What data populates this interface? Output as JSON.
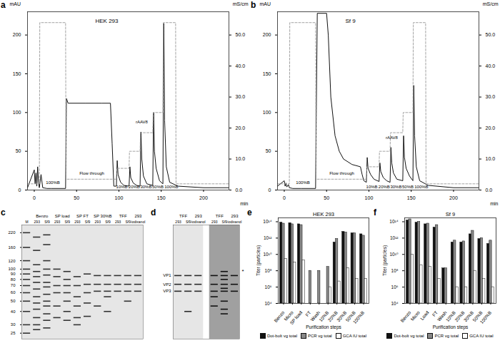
{
  "chart_data": [
    {
      "panel": "a",
      "type": "line",
      "title": "HEK 293",
      "xlabel": "min",
      "ylabel": "mAU",
      "y2label": "mS/cm",
      "xlim": [
        -8,
        230
      ],
      "xticks": [
        0,
        50,
        100,
        150,
        200
      ],
      "ylim": [
        0,
        230
      ],
      "yticks": [
        0,
        50,
        100,
        150,
        200
      ],
      "y2lim": [
        0,
        57.5
      ],
      "y2ticks": [
        {
          "value": 0,
          "label": "0.0"
        },
        {
          "value": 10,
          "label": "10.0"
        },
        {
          "value": 20,
          "label": "20.0"
        },
        {
          "value": 30,
          "label": "30.0"
        },
        {
          "value": 40,
          "label": "40.0"
        },
        {
          "value": 50,
          "label": "50.0"
        }
      ],
      "series": [
        {
          "color": "#111111",
          "line_style": "solid",
          "x": [
            -8,
            0,
            1,
            2,
            3,
            4,
            5,
            6,
            8,
            10,
            15,
            20,
            37,
            38,
            40,
            60,
            80,
            90,
            92,
            94,
            97,
            98,
            99,
            102,
            106,
            112,
            113,
            114,
            117,
            121,
            125,
            126,
            127,
            129,
            133,
            140,
            141,
            142,
            144,
            148,
            152,
            153,
            154,
            156,
            160,
            170,
            200,
            230
          ],
          "values": [
            3,
            26,
            8,
            22,
            5,
            30,
            10,
            3,
            20,
            3,
            2,
            2,
            2,
            118,
            112,
            112,
            112,
            112,
            60,
            5,
            5,
            38,
            20,
            10,
            6,
            5,
            30,
            16,
            9,
            6,
            5,
            75,
            40,
            18,
            8,
            6,
            100,
            50,
            28,
            12,
            8,
            215,
            90,
            30,
            10,
            5,
            3,
            3
          ]
        },
        {
          "color": "#999999",
          "line_style": "dashed",
          "axis": "y2",
          "x": [
            -8,
            6,
            6.5,
            37,
            37.5,
            97,
            97.5,
            112,
            112.5,
            125,
            125.5,
            140,
            140.5,
            152,
            152.5,
            167,
            167.5,
            230
          ],
          "values": [
            2,
            2,
            54,
            54,
            3.5,
            3.5,
            7,
            7,
            12.5,
            12.5,
            18.5,
            18.5,
            25,
            25,
            54,
            54,
            2,
            2
          ]
        }
      ],
      "annotations": [
        {
          "text": "100%B",
          "x": 22,
          "y": 10
        },
        {
          "text": "Flow through",
          "x": 68,
          "y": 22
        },
        {
          "text": "10%B",
          "x": 103.5,
          "y": 4
        },
        {
          "text": "20%B",
          "x": 118,
          "y": 4
        },
        {
          "text": "30%B",
          "x": 132,
          "y": 4
        },
        {
          "text": "50%B",
          "x": 146,
          "y": 4
        },
        {
          "text": "100%B",
          "x": 162,
          "y": 4
        },
        {
          "text": "rAAV8",
          "x": 127,
          "y": 88
        }
      ]
    },
    {
      "panel": "b",
      "type": "line",
      "title": "Sf 9",
      "xlabel": "min",
      "ylabel": "mAU",
      "y2label": "mS/cm",
      "xlim": [
        -8,
        230
      ],
      "xticks": [
        0,
        50,
        100,
        150,
        200
      ],
      "ylim": [
        0,
        230
      ],
      "yticks": [
        0,
        50,
        100,
        150,
        200
      ],
      "y2lim": [
        0,
        57.5
      ],
      "y2ticks": [
        {
          "value": 0,
          "label": "0.0"
        },
        {
          "value": 10,
          "label": "10.0"
        },
        {
          "value": 20,
          "label": "20.0"
        },
        {
          "value": 30,
          "label": "30.0"
        },
        {
          "value": 40,
          "label": "40.0"
        },
        {
          "value": 50,
          "label": "50.0"
        }
      ],
      "series": [
        {
          "color": "#111111",
          "line_style": "solid",
          "x": [
            -8,
            0,
            1,
            2,
            3,
            5,
            6,
            10,
            20,
            37,
            38,
            39,
            50,
            52,
            55,
            60,
            65,
            70,
            80,
            90,
            92,
            94,
            97,
            98,
            99,
            102,
            106,
            112,
            113,
            114,
            117,
            121,
            125,
            126,
            127,
            129,
            133,
            140,
            141,
            142,
            144,
            148,
            152,
            153,
            154,
            156,
            160,
            170,
            200,
            230
          ],
          "values": [
            5,
            12,
            5,
            9,
            4,
            7,
            3,
            2,
            2,
            2,
            120,
            228,
            228,
            200,
            120,
            70,
            50,
            40,
            33,
            30,
            20,
            12,
            10,
            42,
            28,
            20,
            14,
            11,
            35,
            24,
            16,
            12,
            10,
            55,
            35,
            22,
            14,
            12,
            70,
            42,
            28,
            18,
            12,
            135,
            70,
            30,
            12,
            6,
            3,
            3
          ]
        },
        {
          "color": "#999999",
          "line_style": "dashed",
          "axis": "y2",
          "x": [
            -8,
            6,
            6.5,
            37,
            37.5,
            97,
            97.5,
            112,
            112.5,
            125,
            125.5,
            140,
            140.5,
            152,
            152.5,
            167,
            167.5,
            230
          ],
          "values": [
            2,
            2,
            54,
            54,
            3.5,
            3.5,
            7.5,
            7.5,
            12.5,
            12.5,
            18.5,
            18.5,
            25,
            25,
            54,
            54,
            2,
            2
          ]
        }
      ],
      "annotations": [
        {
          "text": "100%B",
          "x": 22,
          "y": 10
        },
        {
          "text": "Flow through",
          "x": 68,
          "y": 22
        },
        {
          "text": "10%B",
          "x": 103.5,
          "y": 4
        },
        {
          "text": "20%B",
          "x": 118,
          "y": 4
        },
        {
          "text": "30%B",
          "x": 132,
          "y": 4
        },
        {
          "text": "50%B",
          "x": 146,
          "y": 4
        },
        {
          "text": "100%B",
          "x": 162,
          "y": 4
        },
        {
          "text": "rAAV8",
          "x": 127,
          "y": 68
        }
      ]
    },
    {
      "panel": "c",
      "type": "gel",
      "log": "y",
      "ylim": [
        22,
        260
      ],
      "yticks": [
        220,
        160,
        120,
        100,
        90,
        80,
        70,
        60,
        50,
        40,
        30,
        25
      ],
      "blots": [
        {
          "color": "#333333",
          "lanes": [
            {
              "group": null,
              "label": "M",
              "bands": [
                220,
                160,
                120,
                100,
                90,
                80,
                70,
                60,
                50,
                40,
                30,
                25
              ]
            },
            {
              "group": "Benzo",
              "label": "293",
              "bands": [
                200,
                150,
                110,
                95,
                85,
                75,
                65,
                55,
                48,
                42,
                35,
                30,
                27
              ]
            },
            {
              "group": "Benzo",
              "label": "Sf9",
              "bands": [
                210,
                170,
                120,
                100,
                88,
                75,
                68,
                58,
                50,
                45,
                38,
                33,
                28
              ]
            },
            {
              "group": "SP load",
              "label": "293",
              "bands": [
                100,
                85,
                70,
                60,
                45,
                35
              ]
            },
            {
              "group": "SP load",
              "label": "Sf9",
              "bands": [
                95,
                80,
                70,
                60,
                50,
                40,
                33
              ]
            },
            {
              "group": "SP FT",
              "label": "293",
              "bands": [
                85,
                70,
                55,
                45,
                35,
                30
              ]
            },
            {
              "group": "SP FT",
              "label": "Sf9",
              "bands": [
                90,
                72,
                60,
                48,
                36
              ]
            },
            {
              "group": "SP 30%B",
              "label": "293",
              "bands": [
                87,
                72,
                62,
                45
              ]
            },
            {
              "group": "SP 30%B",
              "label": "Sf9",
              "bands": [
                87,
                72,
                62,
                55,
                40
              ]
            },
            {
              "group": "TFF",
              "label": "293",
              "bands": [
                87,
                72,
                62
              ]
            },
            {
              "group": "TFF",
              "label": "Sf9",
              "bands": [
                87,
                72,
                62,
                50
              ]
            },
            {
              "group": "293",
              "label": "iodixanol",
              "bands": [
                87,
                72,
                62
              ]
            }
          ]
        }
      ]
    },
    {
      "panel": "d",
      "type": "gel",
      "log": "y",
      "ylim": [
        22,
        260
      ],
      "tick_labels": false,
      "blots": [
        {
          "color": "#2a2a2a",
          "lanes": [
            {
              "group": "TFF",
              "label": "293",
              "bands": [
                87,
                72,
                62
              ]
            },
            {
              "group": "TFF",
              "label": "Sf9",
              "bands": [
                87,
                72,
                62,
                40
              ]
            },
            {
              "group": "293",
              "label": "iodixanol",
              "bands": [
                87,
                72,
                62
              ]
            }
          ]
        },
        {
          "color": "#111111",
          "lanes": [
            {
              "group": "TFF",
              "label": "293",
              "bands": [
                87,
                72,
                62,
                55,
                45
              ]
            },
            {
              "group": "TFF",
              "label": "Sf9",
              "bands": [
                95,
                87,
                80,
                72,
                66,
                62,
                50,
                42,
                38
              ]
            },
            {
              "group": "293",
              "label": "iodixanol",
              "bands": [
                87,
                72,
                62
              ]
            }
          ]
        }
      ],
      "band_labels": [
        {
          "label": "VP1",
          "value": 87
        },
        {
          "label": "VP2",
          "value": 72
        },
        {
          "label": "VP3",
          "value": 62
        }
      ],
      "annotations": [
        {
          "text": "*",
          "value": 95
        }
      ]
    },
    {
      "panel": "e",
      "type": "bar",
      "title": "HEK 293",
      "xlabel": "Purification steps",
      "ylabel": "Titer (particles)",
      "log": "y",
      "legend": "bottom",
      "categories": [
        "Benzo",
        "Micro",
        "SP load",
        "FT",
        "Wash",
        "10%B",
        "20%B",
        "30%B",
        "50%B",
        "100%B"
      ],
      "ylim": [
        10000.0,
        300000000000000.0
      ],
      "yticks": [
        {
          "value": 10000.0,
          "label": "10⁴"
        },
        {
          "value": 1000000.0,
          "label": "10⁶"
        },
        {
          "value": 100000000.0,
          "label": "10⁸"
        },
        {
          "value": 10000000000.0,
          "label": "10¹⁰"
        },
        {
          "value": 1000000000000.0,
          "label": "10¹²"
        },
        {
          "value": 100000000000000.0,
          "label": "10¹⁴"
        }
      ],
      "series": [
        {
          "name": "Dot-bolt vg total",
          "color": "#111111",
          "values": [
            80000000000000.0,
            70000000000000.0,
            50000000000000.0,
            null,
            null,
            null,
            300000000000.0,
            6000000000000.0,
            4000000000000.0,
            3000000000000.0
          ]
        },
        {
          "name": "PCR vg total",
          "color": "#888888",
          "values": [
            60000000000000.0,
            50000000000000.0,
            40000000000000.0,
            100000000.0,
            100000000.0,
            300000000.0,
            800000000000.0,
            5000000000000.0,
            4000000000000.0,
            2000000000000.0
          ]
        },
        {
          "name": "GCA IU total",
          "color": "#ffffff",
          "values": [
            3000000000.0,
            1000000000.0,
            2000000000.0,
            null,
            null,
            1000000.0,
            5000000.0,
            200000000.0,
            10000000.0,
            10000000.0
          ]
        }
      ]
    },
    {
      "panel": "f",
      "type": "bar",
      "title": "Sf 9",
      "xlabel": "Purification steps",
      "ylabel": "Titer (particles)",
      "log": "y",
      "legend": "bottom",
      "categories": [
        "Benzo",
        "Micro",
        "Load",
        "FT",
        "Wash",
        "10%B",
        "20%B",
        "30%B",
        "50%B",
        "100%B"
      ],
      "ylim": [
        10000.0,
        300000000000000.0
      ],
      "yticks": [
        {
          "value": 10000.0,
          "label": "10⁴"
        },
        {
          "value": 1000000.0,
          "label": "10⁶"
        },
        {
          "value": 100000000.0,
          "label": "10⁸"
        },
        {
          "value": 10000000000.0,
          "label": "10¹⁰"
        },
        {
          "value": 1000000000000.0,
          "label": "10¹²"
        },
        {
          "value": 100000000000000.0,
          "label": "10¹⁴"
        }
      ],
      "series": [
        {
          "name": "Dot-bolt vg total",
          "color": "#111111",
          "values": [
            150000000000000.0,
            80000000000000.0,
            50000000000000.0,
            20000000000000.0,
            200000000.0,
            300000000000.0,
            300000000000.0,
            3000000000000.0,
            800000000000.0,
            200000000000.0
          ]
        },
        {
          "name": "PCR vg total",
          "color": "#888888",
          "values": [
            200000000000000.0,
            100000000000000.0,
            60000000000000.0,
            40000000000000.0,
            200000000.0,
            500000000000.0,
            400000000000.0,
            8000000000000.0,
            1000000000000.0,
            500000000000.0
          ]
        },
        {
          "name": "GCA IU total",
          "color": "#ffffff",
          "values": [
            10000000000.0,
            500000000.0,
            300000000.0,
            10000000.0,
            null,
            1000000.0,
            1000000.0,
            100000000.0,
            10000000.0,
            1000000.0
          ]
        }
      ]
    }
  ]
}
